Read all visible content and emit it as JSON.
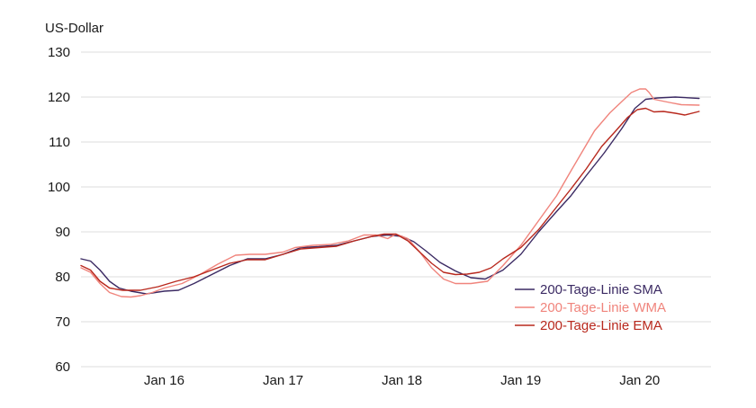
{
  "chart_data": {
    "type": "line",
    "ylabel": "US-Dollar",
    "ylim": [
      60,
      130
    ],
    "yticks": [
      60,
      70,
      80,
      90,
      100,
      110,
      120,
      130
    ],
    "xlim": [
      2015.3,
      2020.6
    ],
    "xticks": [
      {
        "label": "Jan 16",
        "x": 2016.0
      },
      {
        "label": "Jan 17",
        "x": 2017.0
      },
      {
        "label": "Jan 18",
        "x": 2018.0
      },
      {
        "label": "Jan 19",
        "x": 2019.0
      },
      {
        "label": "Jan 20",
        "x": 2020.0
      }
    ],
    "grid": true,
    "legend_position": "bottom-right",
    "series": [
      {
        "name": "200-Tage-Linie SMA",
        "color": "#3b2a63",
        "points": [
          [
            2015.3,
            84.0
          ],
          [
            2015.38,
            83.5
          ],
          [
            2015.46,
            81.5
          ],
          [
            2015.54,
            79.0
          ],
          [
            2015.62,
            77.5
          ],
          [
            2015.72,
            76.8
          ],
          [
            2015.85,
            76.2
          ],
          [
            2016.0,
            76.8
          ],
          [
            2016.12,
            77.0
          ],
          [
            2016.25,
            78.5
          ],
          [
            2016.4,
            80.5
          ],
          [
            2016.55,
            82.5
          ],
          [
            2016.7,
            84.0
          ],
          [
            2016.85,
            84.0
          ],
          [
            2017.0,
            85.0
          ],
          [
            2017.15,
            86.5
          ],
          [
            2017.3,
            86.7
          ],
          [
            2017.45,
            87.0
          ],
          [
            2017.6,
            88.0
          ],
          [
            2017.75,
            89.0
          ],
          [
            2017.88,
            89.3
          ],
          [
            2018.0,
            89.0
          ],
          [
            2018.1,
            87.8
          ],
          [
            2018.2,
            85.8
          ],
          [
            2018.32,
            83.2
          ],
          [
            2018.45,
            81.3
          ],
          [
            2018.58,
            79.8
          ],
          [
            2018.7,
            79.5
          ],
          [
            2018.85,
            81.5
          ],
          [
            2019.0,
            85.0
          ],
          [
            2019.15,
            90.0
          ],
          [
            2019.3,
            94.5
          ],
          [
            2019.42,
            98.0
          ],
          [
            2019.55,
            102.5
          ],
          [
            2019.7,
            107.5
          ],
          [
            2019.85,
            113.0
          ],
          [
            2019.96,
            117.5
          ],
          [
            2020.05,
            119.5
          ],
          [
            2020.15,
            119.8
          ],
          [
            2020.3,
            120.0
          ],
          [
            2020.5,
            119.7
          ]
        ]
      },
      {
        "name": "200-Tage-Linie WMA",
        "color": "#f0847c",
        "points": [
          [
            2015.3,
            82.0
          ],
          [
            2015.38,
            81.0
          ],
          [
            2015.46,
            78.5
          ],
          [
            2015.54,
            76.5
          ],
          [
            2015.64,
            75.6
          ],
          [
            2015.72,
            75.5
          ],
          [
            2015.8,
            75.8
          ],
          [
            2015.9,
            76.5
          ],
          [
            2016.0,
            77.5
          ],
          [
            2016.15,
            78.5
          ],
          [
            2016.3,
            80.5
          ],
          [
            2016.45,
            82.8
          ],
          [
            2016.6,
            84.8
          ],
          [
            2016.72,
            85.0
          ],
          [
            2016.85,
            85.0
          ],
          [
            2017.0,
            85.5
          ],
          [
            2017.1,
            86.5
          ],
          [
            2017.25,
            87.0
          ],
          [
            2017.4,
            87.2
          ],
          [
            2017.55,
            88.0
          ],
          [
            2017.68,
            89.3
          ],
          [
            2017.78,
            89.3
          ],
          [
            2017.88,
            88.5
          ],
          [
            2017.95,
            89.5
          ],
          [
            2018.05,
            88.5
          ],
          [
            2018.15,
            85.5
          ],
          [
            2018.25,
            82.0
          ],
          [
            2018.35,
            79.5
          ],
          [
            2018.45,
            78.5
          ],
          [
            2018.58,
            78.5
          ],
          [
            2018.72,
            79.0
          ],
          [
            2018.85,
            82.5
          ],
          [
            2019.0,
            87.0
          ],
          [
            2019.15,
            92.5
          ],
          [
            2019.3,
            98.0
          ],
          [
            2019.42,
            103.5
          ],
          [
            2019.52,
            108.0
          ],
          [
            2019.62,
            112.5
          ],
          [
            2019.75,
            116.5
          ],
          [
            2019.85,
            119.0
          ],
          [
            2019.93,
            121.0
          ],
          [
            2020.0,
            121.8
          ],
          [
            2020.05,
            121.8
          ],
          [
            2020.08,
            121.0
          ],
          [
            2020.12,
            119.5
          ],
          [
            2020.25,
            118.8
          ],
          [
            2020.35,
            118.3
          ],
          [
            2020.5,
            118.2
          ]
        ]
      },
      {
        "name": "200-Tage-Linie EMA",
        "color": "#b8281d",
        "points": [
          [
            2015.3,
            82.5
          ],
          [
            2015.38,
            81.5
          ],
          [
            2015.46,
            79.0
          ],
          [
            2015.54,
            77.5
          ],
          [
            2015.65,
            77.0
          ],
          [
            2015.8,
            77.0
          ],
          [
            2015.95,
            77.8
          ],
          [
            2016.1,
            79.0
          ],
          [
            2016.25,
            80.0
          ],
          [
            2016.4,
            81.5
          ],
          [
            2016.55,
            83.0
          ],
          [
            2016.7,
            83.8
          ],
          [
            2016.85,
            83.8
          ],
          [
            2017.0,
            85.0
          ],
          [
            2017.15,
            86.2
          ],
          [
            2017.3,
            86.5
          ],
          [
            2017.45,
            86.8
          ],
          [
            2017.6,
            88.0
          ],
          [
            2017.75,
            89.0
          ],
          [
            2017.85,
            89.5
          ],
          [
            2017.95,
            89.5
          ],
          [
            2018.05,
            88.0
          ],
          [
            2018.15,
            85.5
          ],
          [
            2018.25,
            83.0
          ],
          [
            2018.35,
            81.0
          ],
          [
            2018.45,
            80.5
          ],
          [
            2018.55,
            80.6
          ],
          [
            2018.65,
            81.0
          ],
          [
            2018.75,
            82.0
          ],
          [
            2018.85,
            84.0
          ],
          [
            2019.0,
            86.5
          ],
          [
            2019.15,
            90.5
          ],
          [
            2019.3,
            95.5
          ],
          [
            2019.42,
            99.5
          ],
          [
            2019.55,
            104.0
          ],
          [
            2019.68,
            109.0
          ],
          [
            2019.8,
            112.5
          ],
          [
            2019.9,
            115.5
          ],
          [
            2019.98,
            117.2
          ],
          [
            2020.05,
            117.5
          ],
          [
            2020.12,
            116.7
          ],
          [
            2020.2,
            116.8
          ],
          [
            2020.3,
            116.4
          ],
          [
            2020.38,
            116.0
          ],
          [
            2020.5,
            116.8
          ]
        ]
      }
    ]
  }
}
